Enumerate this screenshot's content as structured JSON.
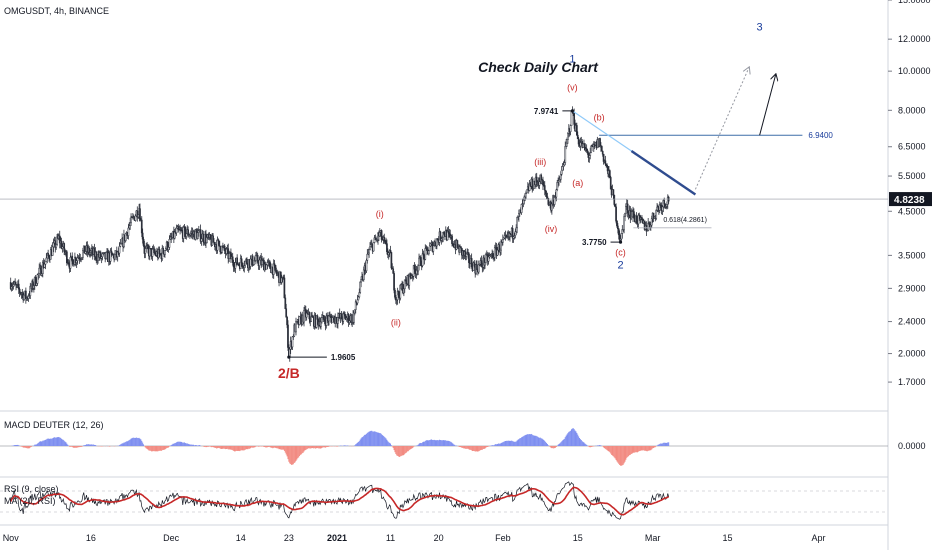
{
  "header": {
    "symbol_text": "OMGUSDT, 4h, BINANCE"
  },
  "chart_data": {
    "type": "candlestick",
    "symbol": "OMGUSDT",
    "interval": "4h",
    "exchange": "BINANCE",
    "y_scale": "log",
    "ylim": [
      1.45,
      15.0
    ],
    "price_ticks": [
      "15.0000",
      "12.0000",
      "10.0000",
      "8.0000",
      "6.5000",
      "5.5000",
      "4.5000",
      "3.5000",
      "2.9000",
      "2.4000",
      "2.0000",
      "1.7000"
    ],
    "price_tick_values": [
      15.0,
      12.0,
      10.0,
      8.0,
      6.5,
      5.5,
      4.5,
      3.5,
      2.9,
      2.4,
      2.0,
      1.7
    ],
    "x_ticks": [
      "Nov",
      "16",
      "Dec",
      "14",
      "23",
      "2021",
      "11",
      "20",
      "Feb",
      "15",
      "Mar",
      "15",
      "Apr"
    ],
    "last_price": "4.8238",
    "annotation_text": "Check Daily Chart",
    "price_path": [
      [
        "2020-11-01",
        3.0
      ],
      [
        "2020-11-04",
        2.75
      ],
      [
        "2020-11-07",
        3.3
      ],
      [
        "2020-11-10",
        3.85
      ],
      [
        "2020-11-12",
        3.35
      ],
      [
        "2020-11-15",
        3.6
      ],
      [
        "2020-11-18",
        3.45
      ],
      [
        "2020-11-21",
        3.5
      ],
      [
        "2020-11-23",
        4.1
      ],
      [
        "2020-11-25",
        4.6
      ],
      [
        "2020-11-26",
        3.6
      ],
      [
        "2020-11-29",
        3.5
      ],
      [
        "2020-12-02",
        4.0
      ],
      [
        "2020-12-06",
        3.95
      ],
      [
        "2020-12-10",
        3.7
      ],
      [
        "2020-12-13",
        3.35
      ],
      [
        "2020-12-17",
        3.4
      ],
      [
        "2020-12-20",
        3.25
      ],
      [
        "2020-12-22",
        3.0
      ],
      [
        "2020-12-23",
        2.0
      ],
      [
        "2020-12-24",
        2.3
      ],
      [
        "2020-12-26",
        2.5
      ],
      [
        "2020-12-28",
        2.4
      ],
      [
        "2020-12-31",
        2.45
      ],
      [
        "2021-01-04",
        2.45
      ],
      [
        "2021-01-07",
        3.6
      ],
      [
        "2021-01-09",
        3.95
      ],
      [
        "2021-01-11",
        3.45
      ],
      [
        "2021-01-12",
        2.75
      ],
      [
        "2021-01-15",
        3.15
      ],
      [
        "2021-01-18",
        3.6
      ],
      [
        "2021-01-21",
        4.0
      ],
      [
        "2021-01-24",
        3.6
      ],
      [
        "2021-01-27",
        3.25
      ],
      [
        "2021-01-30",
        3.5
      ],
      [
        "2021-02-03",
        4.0
      ],
      [
        "2021-02-06",
        5.2
      ],
      [
        "2021-02-08",
        5.4
      ],
      [
        "2021-02-10",
        4.6
      ],
      [
        "2021-02-12",
        5.6
      ],
      [
        "2021-02-14",
        7.9741
      ],
      [
        "2021-02-15",
        6.8
      ],
      [
        "2021-02-17",
        6.2
      ],
      [
        "2021-02-19",
        6.7
      ],
      [
        "2021-02-21",
        5.4
      ],
      [
        "2021-02-23",
        3.775
      ],
      [
        "2021-02-24",
        4.6
      ],
      [
        "2021-02-26",
        4.3
      ],
      [
        "2021-02-28",
        4.1
      ],
      [
        "2021-03-02",
        4.6
      ],
      [
        "2021-03-04",
        4.82
      ]
    ],
    "wave_labels": [
      {
        "text": "1",
        "date": "2021-02-14",
        "price": 10.5,
        "color": "#1a3d9c"
      },
      {
        "text": "2",
        "date": "2021-02-23",
        "price": 3.25,
        "color": "#1a3d9c"
      },
      {
        "text": "3",
        "date": "2021-03-21",
        "price": 12.6,
        "color": "#1a3d9c"
      },
      {
        "text": "2/B",
        "date": "2020-12-23",
        "price": 1.74,
        "color": "#c62828"
      },
      {
        "text": "(i)",
        "date": "2021-01-09",
        "price": 4.35,
        "color": "#c62828"
      },
      {
        "text": "(ii)",
        "date": "2021-01-12",
        "price": 2.35,
        "color": "#c62828"
      },
      {
        "text": "(iii)",
        "date": "2021-02-08",
        "price": 5.85,
        "color": "#c62828"
      },
      {
        "text": "(iv)",
        "date": "2021-02-10",
        "price": 4.0,
        "color": "#c62828"
      },
      {
        "text": "(v)",
        "date": "2021-02-14",
        "price": 8.95,
        "color": "#c62828"
      },
      {
        "text": "(a)",
        "date": "2021-02-15",
        "price": 5.2,
        "color": "#c62828"
      },
      {
        "text": "(b)",
        "date": "2021-02-19",
        "price": 7.55,
        "color": "#c62828"
      },
      {
        "text": "(c)",
        "date": "2021-02-23",
        "price": 3.5,
        "color": "#c62828"
      }
    ],
    "price_callouts": [
      {
        "text": "7.9741",
        "date": "2021-02-14",
        "price": 7.9741
      },
      {
        "text": "3.7750",
        "date": "2021-02-23",
        "price": 3.775
      },
      {
        "text": "1.9605",
        "date": "2020-12-23",
        "price": 1.9605
      }
    ],
    "resistance": {
      "label": "6.9400",
      "price": 6.94,
      "start": "2021-02-19",
      "end": "2021-03-29"
    },
    "fib_level": {
      "label": "0.618(4.2861)",
      "price": 4.2861,
      "start": "2021-03-03",
      "end": "2021-03-12"
    },
    "trendline": {
      "start": [
        "2021-02-14",
        7.9741
      ],
      "end": [
        "2021-03-09",
        4.95
      ]
    },
    "projection_solid": [
      [
        "2021-03-21",
        6.94
      ],
      [
        "2021-03-24",
        9.8
      ]
    ],
    "projection_dotted": [
      [
        "2021-03-09",
        5.1
      ],
      [
        "2021-03-19",
        10.2
      ]
    ],
    "macd": {
      "name": "MACD DEUTER (12, 26)",
      "zero_label": "0.0000"
    },
    "rsi": {
      "name": "RSI (9, close)",
      "ma_name": "MA (20, RSI)"
    }
  }
}
